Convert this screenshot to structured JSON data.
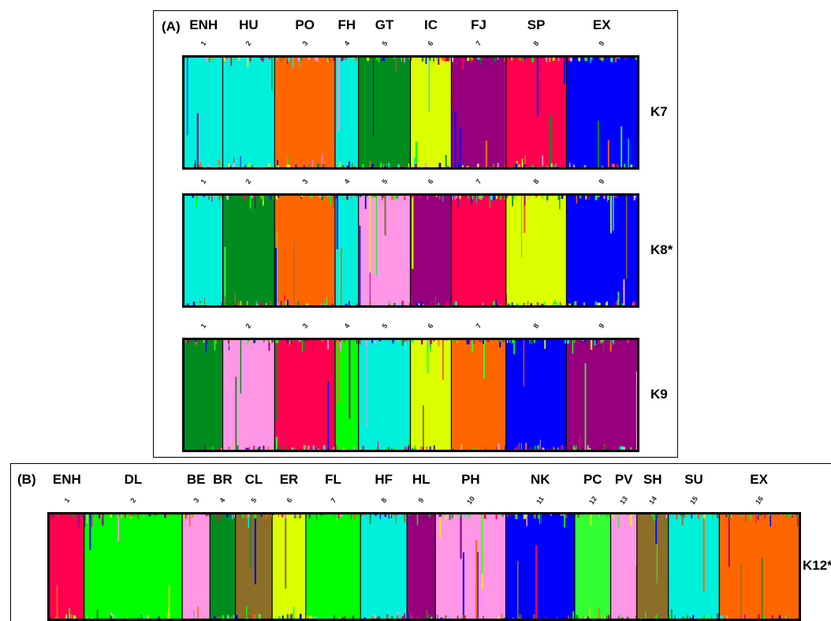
{
  "panels": {
    "A": {
      "label": "(A)"
    },
    "B": {
      "label": "(B)"
    }
  },
  "chart_data": [
    {
      "type": "bar",
      "subtype": "stacked-structure-admixture",
      "panel": "(A)",
      "populations": [
        {
          "name": "ENH",
          "number": "1"
        },
        {
          "name": "HU",
          "number": "2"
        },
        {
          "name": "PO",
          "number": "3"
        },
        {
          "name": "FH",
          "number": "4"
        },
        {
          "name": "GT",
          "number": "5"
        },
        {
          "name": "IC",
          "number": "6"
        },
        {
          "name": "FJ",
          "number": "7"
        },
        {
          "name": "SP",
          "number": "8"
        },
        {
          "name": "EX",
          "number": "9"
        }
      ],
      "rows": [
        {
          "label": "K7",
          "numbers": [
            "1",
            "2",
            "3",
            "4",
            "5",
            "6",
            "7",
            "8",
            "9"
          ],
          "cluster_colors": [
            "#00f0dc",
            "#00f0dc",
            "#ff6600",
            "#00f0dc",
            "#008c1e",
            "#dcff00",
            "#96007d",
            "#ff0050",
            "#0000ff"
          ],
          "widths": [
            0.098,
            0.133,
            0.155,
            0.06,
            0.133,
            0.105,
            0.14,
            0.155,
            0.181
          ]
        },
        {
          "label": "K8*",
          "numbers": [
            "1",
            "2",
            "3",
            "4",
            "5",
            "6",
            "7",
            "8",
            "9"
          ],
          "cluster_colors": [
            "#00f0dc",
            "#008c1e",
            "#ff6600",
            "#00f0dc",
            "#ff96e6",
            "#96007d",
            "#ff0050",
            "#dcff00",
            "#0000ff"
          ],
          "widths": [
            0.098,
            0.133,
            0.155,
            0.06,
            0.133,
            0.105,
            0.14,
            0.155,
            0.181
          ]
        },
        {
          "label": "K9",
          "numbers": [
            "1",
            "2",
            "3",
            "4",
            "5",
            "6",
            "7",
            "8",
            "9"
          ],
          "cluster_colors": [
            "#008c1e",
            "#ff96e6",
            "#ff0050",
            "#00ff00",
            "#00f0dc",
            "#dcff00",
            "#ff6600",
            "#0000ff",
            "#96007d"
          ],
          "widths": [
            0.098,
            0.133,
            0.155,
            0.06,
            0.133,
            0.105,
            0.14,
            0.155,
            0.181
          ]
        }
      ]
    },
    {
      "type": "bar",
      "subtype": "stacked-structure-admixture",
      "panel": "(B)",
      "populations": [
        {
          "name": "ENH",
          "number": "1"
        },
        {
          "name": "DL",
          "number": "2"
        },
        {
          "name": "BE",
          "number": "3"
        },
        {
          "name": "BR",
          "number": "4"
        },
        {
          "name": "CL",
          "number": "5"
        },
        {
          "name": "ER",
          "number": "6"
        },
        {
          "name": "FL",
          "number": "7"
        },
        {
          "name": "HF",
          "number": "8"
        },
        {
          "name": "HL",
          "number": "9"
        },
        {
          "name": "PH",
          "number": "10"
        },
        {
          "name": "NK",
          "number": "11"
        },
        {
          "name": "PC",
          "number": "12"
        },
        {
          "name": "PV",
          "number": "13"
        },
        {
          "name": "SH",
          "number": "14"
        },
        {
          "name": "SU",
          "number": "15"
        },
        {
          "name": "EX",
          "number": "16"
        }
      ],
      "rows": [
        {
          "label": "K12*",
          "numbers": [
            "1",
            "2",
            "3",
            "4",
            "5",
            "6",
            "7",
            "8",
            "9",
            "10",
            "11",
            "12",
            "13",
            "14",
            "15",
            "16"
          ],
          "cluster_colors": [
            "#ff0050",
            "#00ff00",
            "#ff96e6",
            "#008c1e",
            "#8c6e28",
            "#dcff00",
            "#00ff00",
            "#00f0dc",
            "#96007d",
            "#ff96e6",
            "#0000ff",
            "#32ff32",
            "#ff96e6",
            "#8c6e28",
            "#00f0dc",
            "#ff6600"
          ],
          "widths": [
            0.046,
            0.131,
            0.037,
            0.034,
            0.049,
            0.045,
            0.073,
            0.062,
            0.038,
            0.094,
            0.092,
            0.048,
            0.035,
            0.042,
            0.068,
            0.106
          ]
        }
      ]
    }
  ]
}
